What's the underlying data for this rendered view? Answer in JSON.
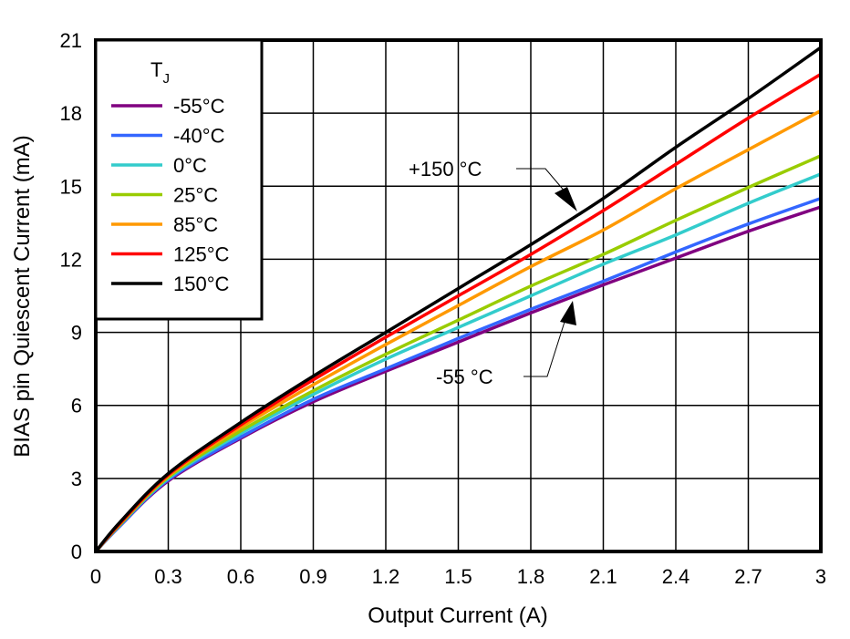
{
  "chart_data": {
    "type": "line",
    "title": "",
    "xlabel": "Output Current (A)",
    "ylabel": "BIAS pin Quiescent Current (mA)",
    "xlim": [
      0,
      3
    ],
    "ylim": [
      0,
      21
    ],
    "grid": true,
    "x_ticks": [
      "0",
      "0.3",
      "0.6",
      "0.9",
      "1.2",
      "1.5",
      "1.8",
      "2.1",
      "2.4",
      "2.7",
      "3"
    ],
    "y_ticks": [
      "0",
      "3",
      "6",
      "9",
      "12",
      "15",
      "18",
      "21"
    ],
    "legend": {
      "title": "T",
      "title_sub": "J",
      "placement": "top-left"
    },
    "x": [
      0,
      0.1,
      0.3,
      0.6,
      0.9,
      1.2,
      1.5,
      1.8,
      2.1,
      2.4,
      2.7,
      3.0
    ],
    "series": [
      {
        "name": "-55°C",
        "color": "#800080",
        "values": [
          0,
          1.05,
          2.9,
          4.65,
          6.15,
          7.4,
          8.6,
          9.8,
          10.95,
          12.05,
          13.15,
          14.15
        ]
      },
      {
        "name": "-40°C",
        "color": "#3366ff",
        "values": [
          0,
          1.05,
          2.95,
          4.7,
          6.25,
          7.5,
          8.75,
          9.95,
          11.1,
          12.3,
          13.45,
          14.5
        ]
      },
      {
        "name": "0°C",
        "color": "#33cccc",
        "values": [
          0,
          1.1,
          3.0,
          4.85,
          6.45,
          7.9,
          9.2,
          10.5,
          11.8,
          13.0,
          14.3,
          15.5
        ]
      },
      {
        "name": "25°C",
        "color": "#99cc00",
        "values": [
          0,
          1.1,
          3.05,
          4.95,
          6.6,
          8.1,
          9.5,
          10.9,
          12.2,
          13.6,
          14.95,
          16.25
        ]
      },
      {
        "name": "85°C",
        "color": "#ff9900",
        "values": [
          0,
          1.15,
          3.1,
          5.1,
          6.85,
          8.5,
          10.1,
          11.7,
          13.2,
          14.9,
          16.5,
          18.1
        ]
      },
      {
        "name": "125°C",
        "color": "#ff0000",
        "values": [
          0,
          1.15,
          3.15,
          5.2,
          7.05,
          8.8,
          10.5,
          12.2,
          14.0,
          15.9,
          17.8,
          19.6
        ]
      },
      {
        "name": "150°C",
        "color": "#000000",
        "values": [
          0,
          1.2,
          3.2,
          5.3,
          7.2,
          9.0,
          10.8,
          12.6,
          14.5,
          16.6,
          18.6,
          20.7
        ]
      }
    ],
    "annotations": [
      {
        "text": "+150 °C",
        "points_to": {
          "x": 2.0,
          "y": 13.8
        }
      },
      {
        "text": "-55 °C",
        "points_to": {
          "x": 1.98,
          "y": 10.6
        }
      }
    ]
  }
}
